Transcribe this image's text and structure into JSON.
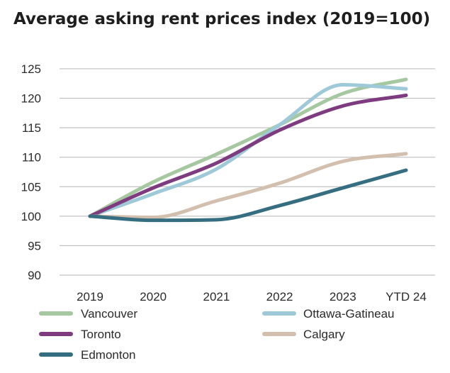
{
  "chart_data": {
    "type": "line",
    "title": "Average asking rent prices index (2019=100)",
    "xlabel": "",
    "ylabel": "",
    "categories": [
      "2019",
      "2020",
      "2021",
      "2022",
      "2023",
      "YTD 24"
    ],
    "ylim": [
      90,
      125
    ],
    "yticks": [
      90,
      95,
      100,
      105,
      110,
      115,
      120,
      125
    ],
    "grid": true,
    "legend_position": "bottom",
    "series": [
      {
        "name": "Vancouver",
        "color": "#a6c8a0",
        "values": [
          100,
          105.8,
          110.5,
          115.5,
          120.8,
          123.2
        ]
      },
      {
        "name": "Ottawa-Gatineau",
        "color": "#9ec9d8",
        "values": [
          100,
          103.8,
          108,
          115.5,
          122.3,
          121.6
        ]
      },
      {
        "name": "Toronto",
        "color": "#7e3b7f",
        "values": [
          100,
          104.8,
          109,
          114.6,
          118.7,
          120.5
        ]
      },
      {
        "name": "Calgary",
        "color": "#d3bfae",
        "values": [
          100,
          99.8,
          102.6,
          105.6,
          109.3,
          110.6
        ]
      },
      {
        "name": "Edmonton",
        "color": "#356e80",
        "values": [
          100,
          99.3,
          99.4,
          101.8,
          104.8,
          107.8
        ]
      }
    ]
  }
}
